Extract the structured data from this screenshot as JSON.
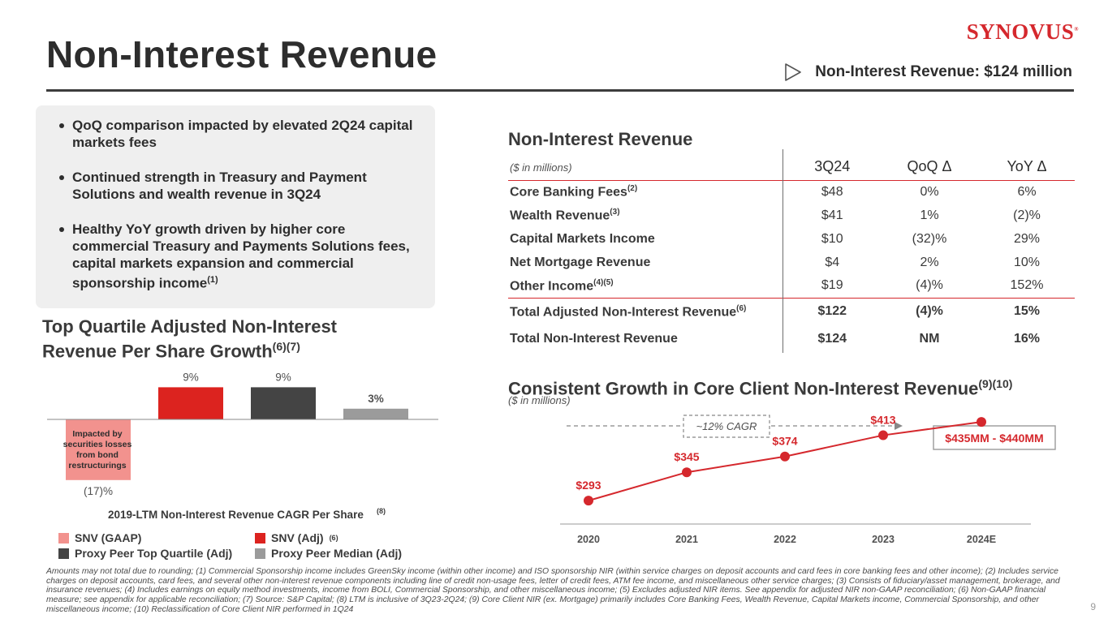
{
  "header": {
    "title": "Non-Interest Revenue",
    "logo_text": "SYNOVUS",
    "logo_mark": "®",
    "callout": "Non-Interest Revenue: $124 million"
  },
  "bullets": [
    {
      "text": "QoQ comparison impacted by elevated 2Q24 capital markets fees",
      "note": ""
    },
    {
      "text": "Continued strength in Treasury and Payment Solutions and wealth revenue in 3Q24",
      "note": ""
    },
    {
      "text": "Healthy YoY growth driven by higher core commercial Treasury and Payments Solutions fees, capital markets expansion and commercial sponsorship income",
      "note": "(1)"
    }
  ],
  "table": {
    "title": "Non-Interest Revenue",
    "units": "($ in millions)",
    "columns": [
      "3Q24",
      "QoQ Δ",
      "YoY Δ"
    ],
    "rows": [
      {
        "label": "Core Banking Fees",
        "note": "(2)",
        "values": [
          "$48",
          "0%",
          "6%"
        ]
      },
      {
        "label": "Wealth Revenue",
        "note": "(3)",
        "values": [
          "$41",
          "1%",
          "(2)%"
        ]
      },
      {
        "label": "Capital Markets Income",
        "note": "",
        "values": [
          "$10",
          "(32)%",
          "29%"
        ]
      },
      {
        "label": "Net Mortgage Revenue",
        "note": "",
        "values": [
          "$4",
          "2%",
          "10%"
        ]
      },
      {
        "label": "Other Income",
        "note": "(4)(5)",
        "values": [
          "$19",
          "(4)%",
          "152%"
        ]
      }
    ],
    "totals": [
      {
        "label": "Total Adjusted Non-Interest Revenue",
        "note": "(6)",
        "values": [
          "$122",
          "(4)%",
          "15%"
        ]
      },
      {
        "label": "Total Non-Interest Revenue",
        "note": "",
        "values": [
          "$124",
          "NM",
          "16%"
        ]
      }
    ]
  },
  "bar_section": {
    "title_line1": "Top Quartile Adjusted Non-Interest",
    "title_line2": "Revenue Per Share Growth",
    "title_note": "(6)(7)",
    "annotation": [
      "Impacted by",
      "securities losses",
      "from bond",
      "restructurings"
    ],
    "legend": [
      {
        "label": "SNV (GAAP)",
        "note": "",
        "color": "#f2928e"
      },
      {
        "label": "SNV (Adj)",
        "note": "(6)",
        "color": "#dc231f"
      },
      {
        "label": "Proxy Peer Top Quartile (Adj)",
        "note": "",
        "color": "#444444"
      },
      {
        "label": "Proxy Peer Median (Adj)",
        "note": "",
        "color": "#9b9b9b"
      }
    ]
  },
  "line_section": {
    "title": "Consistent Growth in Core Client Non-Interest Revenue",
    "title_note": "(9)(10)",
    "units": "($ in millions)",
    "cagr_label": "~12% CAGR",
    "outlook_label": "$435MM - $440MM"
  },
  "chart_data": [
    {
      "type": "bar",
      "title": "Top Quartile Adjusted Non-Interest Revenue Per Share Growth",
      "xlabel": "2019-LTM Non-Interest Revenue CAGR Per Share",
      "xlabel_note": "(8)",
      "ylabel": "",
      "categories": [
        "SNV (GAAP)",
        "SNV (Adj)",
        "Proxy Peer Top Quartile (Adj)",
        "Proxy Peer Median (Adj)"
      ],
      "values": [
        -17,
        9,
        9,
        3
      ],
      "labels": [
        "(17)%",
        "9%",
        "9%",
        "3%"
      ],
      "colors": [
        "#f2928e",
        "#dc231f",
        "#444444",
        "#9b9b9b"
      ],
      "ylim": [
        -17,
        9
      ],
      "grid": false
    },
    {
      "type": "line",
      "title": "Consistent Growth in Core Client Non-Interest Revenue",
      "xlabel": "",
      "ylabel": "($ in millions)",
      "x": [
        "2020",
        "2021",
        "2022",
        "2023",
        "2024E"
      ],
      "values": [
        293,
        345,
        374,
        413,
        437.5
      ],
      "labels": [
        "$293",
        "$345",
        "$374",
        "$413",
        ""
      ],
      "ylim": [
        250,
        460
      ],
      "grid": false
    }
  ],
  "footnote": "Amounts may not total due to rounding; (1) Commercial Sponsorship income includes GreenSky income (within other income) and ISO sponsorship NIR (within service charges on deposit accounts and card fees in core banking fees and other income); (2) Includes service charges on deposit accounts, card fees, and several other non-interest revenue components including line of credit non-usage fees, letter of credit fees, ATM fee income, and miscellaneous other service charges; (3) Consists of fiduciary/asset management, brokerage, and insurance revenues; (4) Includes earnings on equity method investments, income from BOLI, Commercial Sponsorship, and other miscellaneous income; (5) Excludes adjusted NIR items. See appendix for adjusted NIR non-GAAP reconciliation; (6) Non-GAAP financial measure; see appendix for applicable reconciliation; (7) Source: S&P Capital; (8) LTM is inclusive of 3Q23-2Q24; (9) Core Client NIR (ex. Mortgage) primarily includes Core Banking Fees, Wealth Revenue, Capital Markets income, Commercial Sponsorship, and other miscellaneous income; (10) Reclassification of Core Client NIR performed in 1Q24",
  "page_number": "9"
}
